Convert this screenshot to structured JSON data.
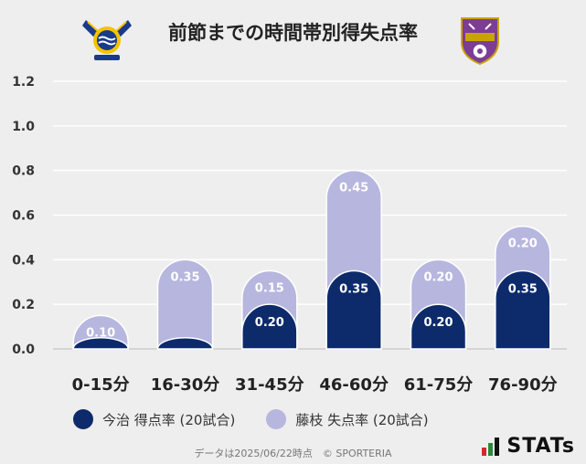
{
  "title": "前節までの時間帯別得失点率",
  "team_home": "今治",
  "team_away": "藤枝",
  "footer": "データは2025/06/22時点　© SPORTERIA",
  "brand": "STATs",
  "colors": {
    "home": "#0d2b6b",
    "away": "#b6b6df",
    "background": "#eeeeee",
    "grid": "#ffffff",
    "axis": "#cccccc",
    "brand_red": "#d7282f",
    "brand_green": "#2a8a3a"
  },
  "chart_data": {
    "type": "bar",
    "title": "前節までの時間帯別得失点率",
    "categories": [
      "0-15分",
      "16-30分",
      "31-45分",
      "46-60分",
      "61-75分",
      "76-90分"
    ],
    "ylim": [
      0,
      1.2
    ],
    "yticks": [
      "0.0",
      "0.2",
      "0.4",
      "0.6",
      "0.8",
      "1.0",
      "1.2"
    ],
    "series": [
      {
        "name": "今治 得点率 (20試合)",
        "values": [
          0.05,
          0.05,
          0.2,
          0.35,
          0.2,
          0.35
        ],
        "labels": [
          "",
          "",
          "0.20",
          "0.35",
          "0.20",
          "0.35"
        ]
      },
      {
        "name": "藤枝 失点率 (20試合)",
        "values": [
          0.1,
          0.35,
          0.15,
          0.45,
          0.2,
          0.2
        ],
        "labels": [
          "0.10",
          "0.35",
          "0.15",
          "0.45",
          "0.20",
          "0.20"
        ]
      }
    ],
    "stacked": true
  }
}
